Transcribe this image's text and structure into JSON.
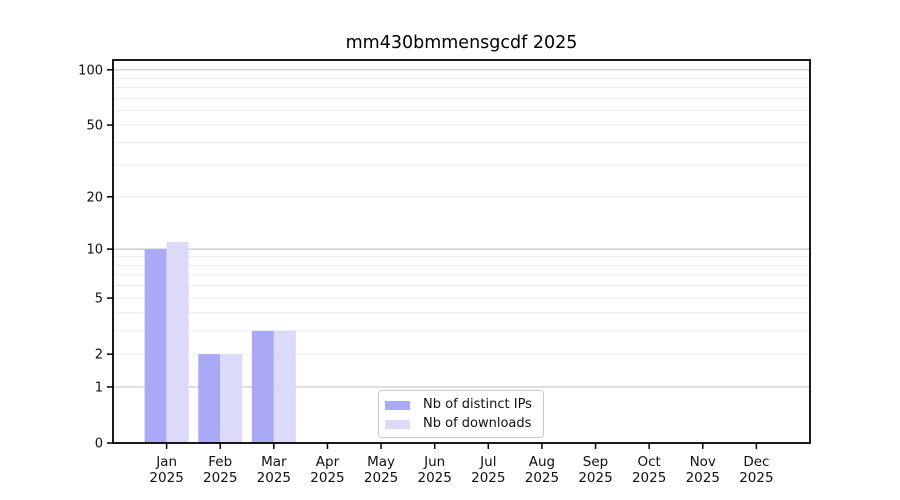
{
  "chart_data": {
    "type": "bar",
    "title": "mm430bmmensgcdf 2025",
    "categories": [
      "Jan",
      "Feb",
      "Mar",
      "Apr",
      "May",
      "Jun",
      "Jul",
      "Aug",
      "Sep",
      "Oct",
      "Nov",
      "Dec"
    ],
    "category_year": "2025",
    "series": [
      {
        "name": "Nb of distinct IPs",
        "color": "#a9a9f6",
        "values": [
          10,
          2,
          3,
          0,
          0,
          0,
          0,
          0,
          0,
          0,
          0,
          0
        ]
      },
      {
        "name": "Nb of downloads",
        "color": "#dbdbf9",
        "values": [
          11,
          2,
          3,
          0,
          0,
          0,
          0,
          0,
          0,
          0,
          0,
          0
        ]
      }
    ],
    "yscale": "log1p",
    "ylim": [
      0,
      113
    ],
    "y_tick_values": [
      0,
      1,
      2,
      5,
      10,
      20,
      50,
      100
    ],
    "grid": {
      "major_values": [
        1,
        10,
        100
      ],
      "minor_values": [
        2,
        3,
        4,
        5,
        6,
        7,
        8,
        9,
        20,
        30,
        40,
        50,
        60,
        70,
        80,
        90
      ],
      "major_color": "#c4c4c4",
      "minor_color": "#eaeaea"
    },
    "legend_position": "lower center"
  },
  "colors": {
    "axis": "#000000",
    "text": "#111111",
    "background": "#ffffff"
  }
}
